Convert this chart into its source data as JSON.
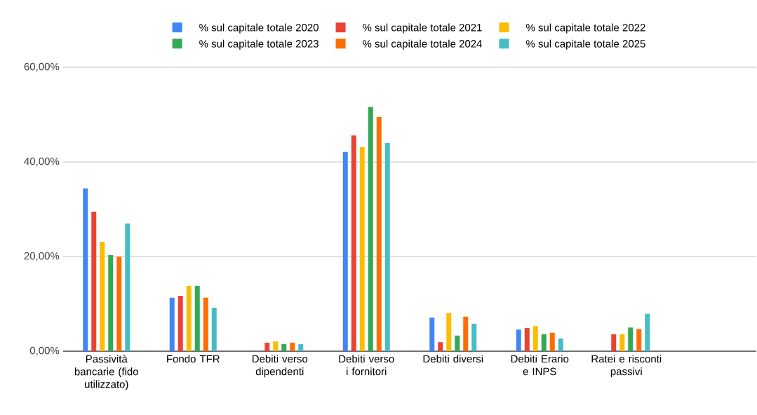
{
  "chart_data": {
    "type": "bar",
    "categories": [
      "Passività bancarie (fido utilizzato)",
      "Fondo TFR",
      "Debiti verso dipendenti",
      "Debiti verso i fornitori",
      "Debiti diversi",
      "Debiti Erario e INPS",
      "Ratei e risconti passivi",
      null
    ],
    "series": [
      {
        "name": "% sul capitale totale 2020",
        "color": "#4285f4",
        "values": [
          34.4,
          11.3,
          null,
          42.1,
          7.1,
          4.6,
          null,
          null
        ]
      },
      {
        "name": "% sul capitale totale 2021",
        "color": "#ea4335",
        "values": [
          29.5,
          11.7,
          1.8,
          45.6,
          1.9,
          4.9,
          3.6,
          null
        ]
      },
      {
        "name": "% sul capitale totale 2022",
        "color": "#fbbc04",
        "values": [
          23.1,
          13.8,
          2.1,
          43.1,
          8.1,
          5.3,
          3.6,
          null
        ]
      },
      {
        "name": "% sul capitale totale 2023",
        "color": "#34a853",
        "values": [
          20.3,
          13.8,
          1.5,
          51.6,
          3.3,
          3.6,
          5.0,
          null
        ]
      },
      {
        "name": "% sul capitale totale 2024",
        "color": "#ff6d01",
        "values": [
          20.0,
          11.3,
          1.8,
          49.5,
          7.3,
          3.9,
          4.7,
          null
        ]
      },
      {
        "name": "% sul capitale totale 2025",
        "color": "#46bdc6",
        "values": [
          27.0,
          9.2,
          1.5,
          44.0,
          5.8,
          2.7,
          7.9,
          null
        ]
      }
    ],
    "ylim": [
      0,
      60
    ],
    "yticks": [
      {
        "value": 0,
        "label": "0,00%"
      },
      {
        "value": 20,
        "label": "20,00%"
      },
      {
        "value": 40,
        "label": "40,00%"
      },
      {
        "value": 60,
        "label": "60,00%"
      }
    ],
    "grid": "y",
    "legend": "top"
  }
}
